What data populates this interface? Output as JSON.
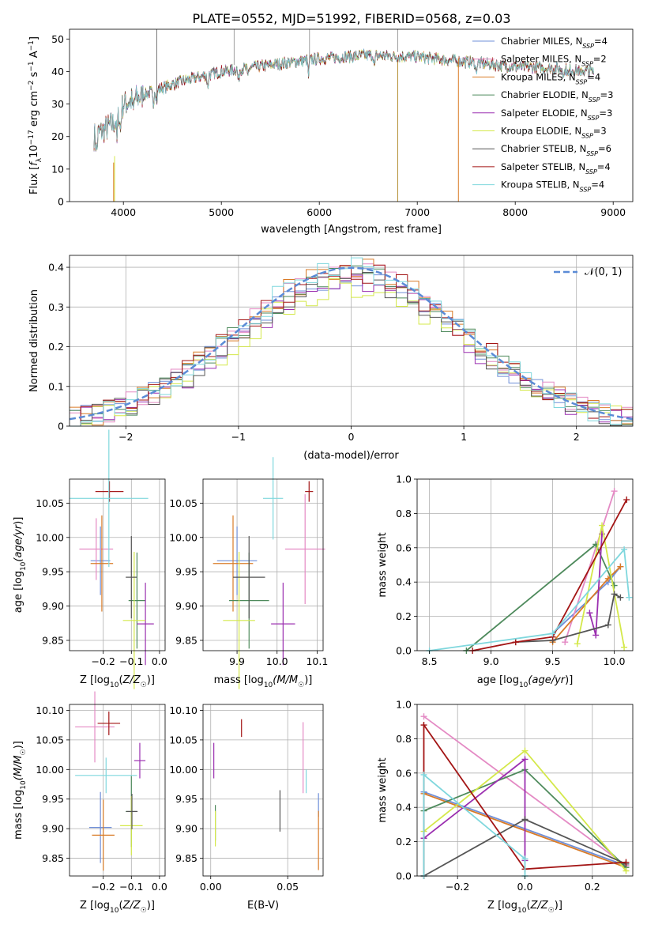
{
  "page_title": "PLATE=0552, MJD=51992, FIBERID=0568, z=0.03",
  "legend": [
    {
      "label": "Chabrier MILES, N",
      "sub": "SSP",
      "suffix": "=4",
      "color": "#6f8fd8"
    },
    {
      "label": "Salpeter MILES, N",
      "sub": "SSP",
      "suffix": "=2",
      "color": "#e48ac4"
    },
    {
      "label": "Kroupa MILES, N",
      "sub": "SSP",
      "suffix": "=4",
      "color": "#d97b27"
    },
    {
      "label": "Chabrier ELODIE, N",
      "sub": "SSP",
      "suffix": "=3",
      "color": "#4e8a5c"
    },
    {
      "label": "Salpeter ELODIE, N",
      "sub": "SSP",
      "suffix": "=3",
      "color": "#9b2fb0"
    },
    {
      "label": "Kroupa ELODIE, N",
      "sub": "SSP",
      "suffix": "=3",
      "color": "#d4e84a"
    },
    {
      "label": "Chabrier STELIB, N",
      "sub": "SSP",
      "suffix": "=6",
      "color": "#555555"
    },
    {
      "label": "Salpeter STELIB, N",
      "sub": "SSP",
      "suffix": "=4",
      "color": "#a31515"
    },
    {
      "label": "Kroupa STELIB, N",
      "sub": "SSP",
      "suffix": "=4",
      "color": "#7fd7dd"
    }
  ],
  "chart_data": [
    {
      "id": "spectrum",
      "type": "line",
      "xlabel": "wavelength [Angstrom, rest frame]",
      "ylabel": "Flux [f_λ 10^-17 erg cm^-2 s^-1 A^-1]",
      "xlim": [
        3450,
        9200
      ],
      "ylim": [
        0,
        53
      ],
      "xticks": [
        4000,
        5000,
        6000,
        7000,
        8000,
        9000
      ],
      "yticks": [
        0,
        10,
        20,
        30,
        40,
        50
      ],
      "continuum": [
        [
          3700,
          20
        ],
        [
          3900,
          24
        ],
        [
          4000,
          30
        ],
        [
          4300,
          34
        ],
        [
          4600,
          37
        ],
        [
          5000,
          40
        ],
        [
          5500,
          42
        ],
        [
          6000,
          44
        ],
        [
          6500,
          45
        ],
        [
          7000,
          44.5
        ],
        [
          7500,
          43
        ],
        [
          8000,
          41.5
        ],
        [
          8400,
          41
        ],
        [
          8800,
          40
        ]
      ],
      "vertical_lines_x": [
        4340,
        6800,
        7420
      ]
    },
    {
      "id": "residuals",
      "type": "line",
      "xlabel": "(data-model)/error",
      "ylabel": "Normed distribution",
      "xlim": [
        -2.5,
        2.5
      ],
      "ylim": [
        0,
        0.43
      ],
      "xticks": [
        -2,
        -1,
        0,
        1,
        2
      ],
      "yticks": [
        0,
        0.1,
        0.2,
        0.3,
        0.4
      ],
      "grid": true,
      "legend_position": "top-right",
      "reference_curve_label": "𝒩(0, 1)",
      "reference_curve_color": "#5b8bd6",
      "bin_width": 0.1
    },
    {
      "id": "age_vs_Z",
      "type": "scatter",
      "xlabel": "Z [log10(Z/Z☉)]",
      "ylabel": "age [log10(age/yr)]",
      "xlim": [
        -0.32,
        0.02
      ],
      "ylim": [
        9.835,
        10.085
      ],
      "xticks": [
        -0.2,
        -0.1,
        0.0
      ],
      "yticks": [
        9.85,
        9.9,
        9.95,
        10.0,
        10.05
      ],
      "grid": true,
      "points": [
        {
          "x": -0.21,
          "y": 9.966,
          "xerr": 0.035,
          "yerr": 0.05,
          "color": "#6f8fd8"
        },
        {
          "x": -0.225,
          "y": 9.983,
          "xerr": 0.06,
          "yerr": 0.045,
          "color": "#e48ac4"
        },
        {
          "x": -0.205,
          "y": 9.962,
          "xerr": 0.04,
          "yerr": 0.07,
          "color": "#d97b27"
        },
        {
          "x": -0.08,
          "y": 9.908,
          "xerr": 0.03,
          "yerr": 0.07,
          "color": "#4e8a5c"
        },
        {
          "x": -0.05,
          "y": 9.874,
          "xerr": 0.03,
          "yerr": 0.06,
          "color": "#9b2fb0"
        },
        {
          "x": -0.09,
          "y": 9.879,
          "xerr": 0.04,
          "yerr": 0.1,
          "color": "#d4e84a"
        },
        {
          "x": -0.1,
          "y": 9.942,
          "xerr": 0.02,
          "yerr": 0.06,
          "color": "#555555"
        },
        {
          "x": -0.178,
          "y": 10.067,
          "xerr": 0.05,
          "yerr": 0.015,
          "color": "#a31515"
        },
        {
          "x": -0.18,
          "y": 10.057,
          "xerr": 0.14,
          "yerr": 0.1,
          "color": "#7fd7dd"
        }
      ]
    },
    {
      "id": "age_vs_mass",
      "type": "scatter",
      "xlabel": "mass [log10(M/M☉)]",
      "ylabel": "",
      "xlim": [
        9.815,
        10.115
      ],
      "ylim": [
        9.835,
        10.085
      ],
      "xticks": [
        9.9,
        10.0,
        10.1
      ],
      "yticks": [
        9.85,
        9.9,
        9.95,
        10.0,
        10.05
      ],
      "grid": true,
      "points": [
        {
          "x": 9.9,
          "y": 9.966,
          "xerr": 0.05,
          "yerr": 0.05,
          "color": "#6f8fd8"
        },
        {
          "x": 10.07,
          "y": 9.983,
          "xerr": 0.05,
          "yerr": 0.08,
          "color": "#e48ac4"
        },
        {
          "x": 9.89,
          "y": 9.962,
          "xerr": 0.05,
          "yerr": 0.07,
          "color": "#d97b27"
        },
        {
          "x": 9.93,
          "y": 9.908,
          "xerr": 0.05,
          "yerr": 0.07,
          "color": "#4e8a5c"
        },
        {
          "x": 10.015,
          "y": 9.874,
          "xerr": 0.03,
          "yerr": 0.06,
          "color": "#9b2fb0"
        },
        {
          "x": 9.905,
          "y": 9.879,
          "xerr": 0.04,
          "yerr": 0.1,
          "color": "#d4e84a"
        },
        {
          "x": 9.93,
          "y": 9.942,
          "xerr": 0.04,
          "yerr": 0.06,
          "color": "#555555"
        },
        {
          "x": 10.08,
          "y": 10.067,
          "xerr": 0.01,
          "yerr": 0.015,
          "color": "#a31515"
        },
        {
          "x": 9.99,
          "y": 10.057,
          "xerr": 0.025,
          "yerr": 0.06,
          "color": "#7fd7dd"
        }
      ]
    },
    {
      "id": "weight_vs_age",
      "type": "line",
      "xlabel": "age [log10(age/yr)]",
      "ylabel": "mass weight",
      "xlim": [
        8.4,
        10.15
      ],
      "ylim": [
        0,
        1.0
      ],
      "xticks": [
        8.5,
        9.0,
        9.5,
        10.0
      ],
      "yticks": [
        0,
        0.2,
        0.4,
        0.6,
        0.8,
        1.0
      ],
      "grid": true,
      "series": [
        {
          "color": "#6f8fd8",
          "points": [
            [
              9.5,
              0.1
            ],
            [
              9.95,
              0.4
            ],
            [
              10.05,
              0.49
            ]
          ]
        },
        {
          "color": "#e48ac4",
          "points": [
            [
              9.6,
              0.05
            ],
            [
              10.0,
              0.93
            ]
          ]
        },
        {
          "color": "#d97b27",
          "points": [
            [
              9.5,
              0.05
            ],
            [
              9.95,
              0.42
            ],
            [
              10.05,
              0.49
            ]
          ]
        },
        {
          "color": "#4e8a5c",
          "points": [
            [
              8.8,
              0.0
            ],
            [
              9.85,
              0.62
            ],
            [
              10.0,
              0.38
            ]
          ]
        },
        {
          "color": "#9b2fb0",
          "points": [
            [
              9.8,
              0.22
            ],
            [
              9.85,
              0.09
            ],
            [
              9.9,
              0.68
            ]
          ]
        },
        {
          "color": "#d4e84a",
          "points": [
            [
              9.7,
              0.04
            ],
            [
              9.9,
              0.73
            ],
            [
              10.08,
              0.02
            ]
          ]
        },
        {
          "color": "#555555",
          "points": [
            [
              9.2,
              0.05
            ],
            [
              9.5,
              0.06
            ],
            [
              9.95,
              0.15
            ],
            [
              10.0,
              0.33
            ],
            [
              10.05,
              0.31
            ]
          ]
        },
        {
          "color": "#a31515",
          "points": [
            [
              8.85,
              0.0
            ],
            [
              9.2,
              0.05
            ],
            [
              9.5,
              0.08
            ],
            [
              10.1,
              0.88
            ]
          ]
        },
        {
          "color": "#7fd7dd",
          "points": [
            [
              8.5,
              0.0
            ],
            [
              9.5,
              0.1
            ],
            [
              10.08,
              0.59
            ],
            [
              10.12,
              0.31
            ]
          ]
        }
      ]
    },
    {
      "id": "mass_vs_Z",
      "type": "scatter",
      "xlabel": "Z [log10(Z/Z☉)]",
      "ylabel": "mass [log10(M/M☉)]",
      "xlim": [
        -0.32,
        0.02
      ],
      "ylim": [
        9.82,
        10.11
      ],
      "xticks": [
        -0.2,
        -0.1,
        0.0
      ],
      "yticks": [
        9.85,
        9.9,
        9.95,
        10.0,
        10.05,
        10.1
      ],
      "grid": true,
      "points": [
        {
          "x": -0.21,
          "y": 9.902,
          "xerr": 0.04,
          "yerr": 0.06,
          "color": "#6f8fd8"
        },
        {
          "x": -0.23,
          "y": 10.072,
          "xerr": 0.07,
          "yerr": 0.06,
          "color": "#e48ac4"
        },
        {
          "x": -0.2,
          "y": 9.889,
          "xerr": 0.04,
          "yerr": 0.06,
          "color": "#d97b27"
        },
        {
          "x": -0.1,
          "y": 9.929,
          "xerr": 0.02,
          "yerr": 0.06,
          "color": "#4e8a5c"
        },
        {
          "x": -0.07,
          "y": 10.015,
          "xerr": 0.02,
          "yerr": 0.03,
          "color": "#9b2fb0"
        },
        {
          "x": -0.1,
          "y": 9.905,
          "xerr": 0.04,
          "yerr": 0.05,
          "color": "#d4e84a"
        },
        {
          "x": -0.098,
          "y": 9.929,
          "xerr": 0.02,
          "yerr": 0.03,
          "color": "#555555"
        },
        {
          "x": -0.18,
          "y": 10.078,
          "xerr": 0.04,
          "yerr": 0.02,
          "color": "#a31515"
        },
        {
          "x": -0.19,
          "y": 9.99,
          "xerr": 0.11,
          "yerr": 0.03,
          "color": "#7fd7dd"
        }
      ]
    },
    {
      "id": "mass_vs_ebv",
      "type": "scatter",
      "xlabel": "E(B-V)",
      "ylabel": "",
      "xlim": [
        -0.005,
        0.073
      ],
      "ylim": [
        9.82,
        10.11
      ],
      "xticks": [
        0.0,
        0.05
      ],
      "yticks": [
        9.85,
        9.9,
        9.95,
        10.0,
        10.05,
        10.1
      ],
      "grid": true,
      "points": [
        {
          "x": 0.07,
          "y": 9.94,
          "yerr": 0.02,
          "color": "#6f8fd8"
        },
        {
          "x": 0.06,
          "y": 10.02,
          "yerr": 0.06,
          "color": "#e48ac4"
        },
        {
          "x": 0.07,
          "y": 9.88,
          "yerr": 0.05,
          "color": "#d97b27"
        },
        {
          "x": 0.003,
          "y": 9.91,
          "yerr": 0.03,
          "color": "#4e8a5c"
        },
        {
          "x": 0.002,
          "y": 10.015,
          "yerr": 0.03,
          "color": "#9b2fb0"
        },
        {
          "x": 0.003,
          "y": 9.9,
          "yerr": 0.03,
          "color": "#d4e84a"
        },
        {
          "x": 0.045,
          "y": 9.93,
          "yerr": 0.035,
          "color": "#555555"
        },
        {
          "x": 0.02,
          "y": 10.07,
          "yerr": 0.015,
          "color": "#a31515"
        },
        {
          "x": 0.062,
          "y": 9.98,
          "yerr": 0.02,
          "color": "#7fd7dd"
        }
      ]
    },
    {
      "id": "weight_vs_Z",
      "type": "line",
      "xlabel": "Z [log10(Z/Z☉)]",
      "ylabel": "mass weight",
      "xlim": [
        -0.32,
        0.32
      ],
      "ylim": [
        0,
        1.0
      ],
      "xticks": [
        -0.2,
        0.0,
        0.2
      ],
      "yticks": [
        0,
        0.2,
        0.4,
        0.6,
        0.8,
        1.0
      ],
      "grid": true,
      "series": [
        {
          "color": "#6f8fd8",
          "points": [
            [
              -0.3,
              0.49
            ],
            [
              0.3,
              0.06
            ]
          ]
        },
        {
          "color": "#e48ac4",
          "points": [
            [
              -0.3,
              0.93
            ],
            [
              0.3,
              0.06
            ]
          ]
        },
        {
          "color": "#d97b27",
          "points": [
            [
              -0.3,
              0.48
            ],
            [
              0.3,
              0.05
            ]
          ]
        },
        {
          "color": "#4e8a5c",
          "points": [
            [
              -0.3,
              0.38
            ],
            [
              0.0,
              0.62
            ],
            [
              0.3,
              0.05
            ]
          ]
        },
        {
          "color": "#9b2fb0",
          "points": [
            [
              -0.3,
              0.22
            ],
            [
              0.0,
              0.68
            ],
            [
              0.0,
              0.09
            ]
          ]
        },
        {
          "color": "#d4e84a",
          "points": [
            [
              -0.3,
              0.26
            ],
            [
              0.0,
              0.73
            ],
            [
              0.3,
              0.03
            ]
          ]
        },
        {
          "color": "#555555",
          "points": [
            [
              -0.3,
              0.0
            ],
            [
              0.0,
              0.33
            ],
            [
              0.3,
              0.07
            ]
          ]
        },
        {
          "color": "#a31515",
          "points": [
            [
              -0.3,
              0.0
            ],
            [
              -0.3,
              0.88
            ],
            [
              0.0,
              0.04
            ],
            [
              0.3,
              0.08
            ]
          ]
        },
        {
          "color": "#7fd7dd",
          "points": [
            [
              -0.3,
              0.0
            ],
            [
              -0.3,
              0.59
            ],
            [
              0.0,
              0.1
            ],
            [
              0.0,
              0.0
            ]
          ]
        }
      ]
    }
  ]
}
